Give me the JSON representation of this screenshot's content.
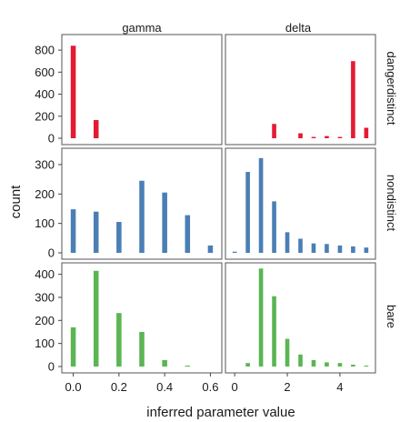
{
  "chart_data": {
    "type": "bar",
    "facet_grid": true,
    "xlabel": "inferred parameter value",
    "ylabel": "count",
    "columns": [
      "gamma",
      "delta"
    ],
    "rows": [
      {
        "label": "dangerdistinct",
        "color": "#e41a33",
        "ylim": [
          0,
          900
        ],
        "yticks": [
          0,
          200,
          400,
          600,
          800
        ]
      },
      {
        "label": "nondistinct",
        "color": "#4a7fb5",
        "ylim": [
          0,
          340
        ],
        "yticks": [
          0,
          100,
          200,
          300
        ]
      },
      {
        "label": "bare",
        "color": "#5ab552",
        "ylim": [
          0,
          430
        ],
        "yticks": [
          0,
          100,
          200,
          300,
          400
        ]
      }
    ],
    "xaxes": {
      "gamma": {
        "xlim": [
          -0.05,
          0.65
        ],
        "ticks": [
          0.0,
          0.2,
          0.4,
          0.6
        ],
        "tick_labels": [
          "0.0",
          "0.2",
          "0.4",
          "0.6"
        ],
        "bar_width": 0.022
      },
      "delta": {
        "xlim": [
          -0.35,
          5.35
        ],
        "ticks": [
          0,
          2,
          4
        ],
        "tick_labels": [
          "0",
          "2",
          "4"
        ],
        "bar_width": 0.16
      }
    },
    "panels": [
      {
        "row": 0,
        "col": 0,
        "x": [
          0.0,
          0.1
        ],
        "values": [
          840,
          165
        ]
      },
      {
        "row": 0,
        "col": 1,
        "x": [
          1.5,
          2.5,
          3.0,
          3.5,
          4.0,
          4.5,
          5.0
        ],
        "values": [
          130,
          45,
          12,
          20,
          12,
          700,
          95
        ]
      },
      {
        "row": 1,
        "col": 0,
        "x": [
          0.0,
          0.1,
          0.2,
          0.3,
          0.4,
          0.5,
          0.6
        ],
        "values": [
          148,
          140,
          105,
          245,
          205,
          128,
          25
        ]
      },
      {
        "row": 1,
        "col": 1,
        "x": [
          0.0,
          0.5,
          1.0,
          1.5,
          2.0,
          2.5,
          3.0,
          3.5,
          4.0,
          4.5,
          5.0
        ],
        "values": [
          4,
          275,
          322,
          175,
          70,
          48,
          32,
          30,
          25,
          22,
          18
        ]
      },
      {
        "row": 2,
        "col": 0,
        "x": [
          0.0,
          0.1,
          0.2,
          0.3,
          0.4,
          0.5
        ],
        "values": [
          170,
          415,
          232,
          150,
          28,
          4
        ]
      },
      {
        "row": 2,
        "col": 1,
        "x": [
          0.5,
          1.0,
          1.5,
          2.0,
          2.5,
          3.0,
          3.5,
          4.0,
          4.5,
          5.0
        ],
        "values": [
          15,
          425,
          305,
          120,
          52,
          28,
          18,
          15,
          8,
          4
        ]
      }
    ],
    "grid": false,
    "legend": "none"
  }
}
